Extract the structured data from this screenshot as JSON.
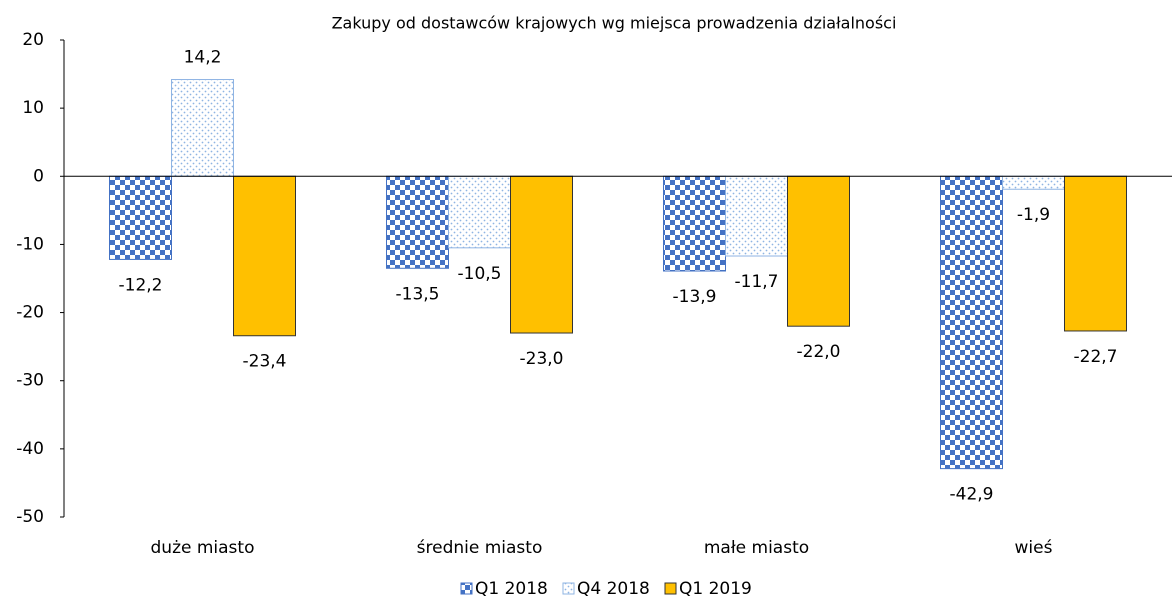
{
  "chart_data": {
    "type": "bar",
    "title": "Zakupy od dostawców krajowych wg miejsca prowadzenia działalności",
    "categories": [
      "duże miasto",
      "średnie miasto",
      "małe miasto",
      "wieś"
    ],
    "series": [
      {
        "name": "Q1 2018",
        "color": "#4472c4",
        "pattern": "checker",
        "values": [
          -12.2,
          -13.5,
          -13.9,
          -42.9
        ],
        "value_labels": [
          "-12,2",
          "-13,5",
          "-13,9",
          "-42,9"
        ]
      },
      {
        "name": "Q4 2018",
        "color": "#8fb4e3",
        "pattern": "dots",
        "values": [
          14.2,
          -10.5,
          -11.7,
          -1.9
        ],
        "value_labels": [
          "14,2",
          "-10,5",
          "-11,7",
          "-1,9"
        ]
      },
      {
        "name": "Q1 2019",
        "color": "#ffc000",
        "pattern": "solid",
        "values": [
          -23.4,
          -23.0,
          -22.0,
          -22.7
        ],
        "value_labels": [
          "-23,4",
          "-23,0",
          "-22,0",
          "-22,7"
        ]
      }
    ],
    "ylim": [
      -50,
      20
    ],
    "yticks": [
      20,
      10,
      0,
      -10,
      -20,
      -30,
      -40,
      -50
    ],
    "legend": "bottom"
  }
}
